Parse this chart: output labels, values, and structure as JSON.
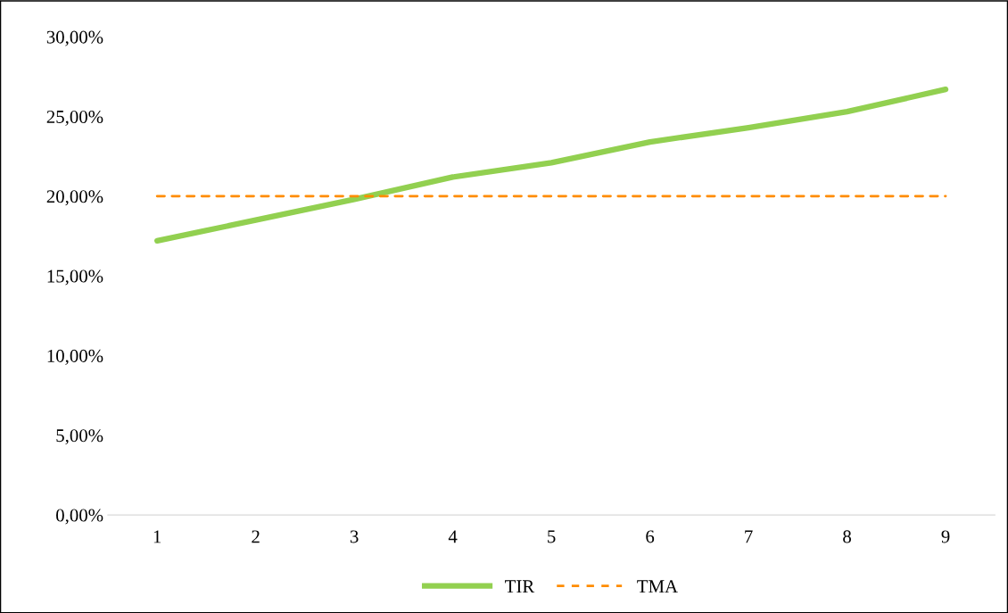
{
  "chart_data": {
    "type": "line",
    "categories": [
      "1",
      "2",
      "3",
      "4",
      "5",
      "6",
      "7",
      "8",
      "9"
    ],
    "series": [
      {
        "name": "TIR",
        "color": "#92d050",
        "line_style": "solid",
        "values": [
          17.2,
          18.5,
          19.8,
          21.2,
          22.1,
          23.4,
          24.3,
          25.3,
          26.7
        ]
      },
      {
        "name": "TMA",
        "color": "#ff8c00",
        "line_style": "dashed",
        "values": [
          20,
          20,
          20,
          20,
          20,
          20,
          20,
          20,
          20
        ]
      }
    ],
    "ylim": [
      0,
      30
    ],
    "yticks": [
      {
        "value": 0,
        "label": "0,00%"
      },
      {
        "value": 5,
        "label": "5,00%"
      },
      {
        "value": 10,
        "label": "10,00%"
      },
      {
        "value": 15,
        "label": "15,00%"
      },
      {
        "value": 20,
        "label": "20,00%"
      },
      {
        "value": 25,
        "label": "25,00%"
      },
      {
        "value": 30,
        "label": "30,00%"
      }
    ],
    "grid": false,
    "legend": "bottom",
    "marker": "none"
  }
}
